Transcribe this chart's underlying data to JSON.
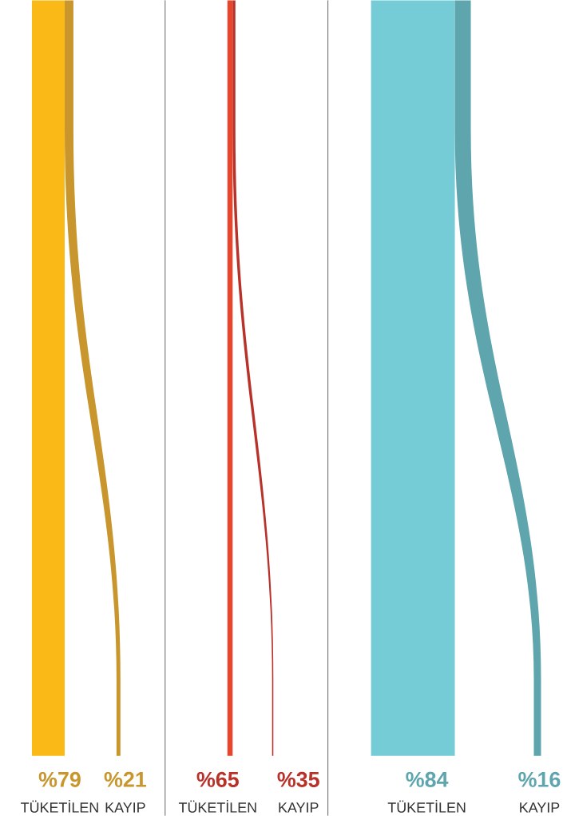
{
  "chart_data": [
    {
      "type": "other",
      "categories": [
        "TÜKETİLEN",
        "KAYIP"
      ],
      "values": [
        79,
        21
      ],
      "value_labels": [
        "%79",
        "%21"
      ],
      "colors": [
        "#fbb917",
        "#c8962c"
      ]
    },
    {
      "type": "other",
      "categories": [
        "TÜKETİLEN",
        "KAYIP"
      ],
      "values": [
        65,
        35
      ],
      "value_labels": [
        "%65",
        "%35"
      ],
      "colors": [
        "#e8452c",
        "#b8322a"
      ]
    },
    {
      "type": "other",
      "categories": [
        "TÜKETİLEN",
        "KAYIP"
      ],
      "values": [
        84,
        16
      ],
      "value_labels": [
        "%84",
        "%16"
      ],
      "colors": [
        "#76ccd6",
        "#5ea5ae"
      ]
    }
  ]
}
